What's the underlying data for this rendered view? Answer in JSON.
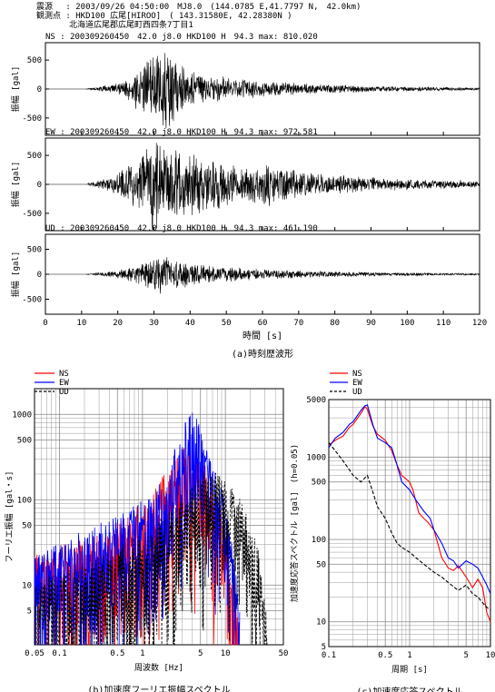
{
  "header": {
    "line1": "震源　 : 2003/09/26 04:50:00　MJ8.0　(144.0785 E,41.7797 N,　42.0km)",
    "line2": "観測点 : HKD100 広尾[HIROO]　( 143.31580E, 42.28380N )",
    "line3": "　　　　北海道広尾郡広尾町西四条7丁目1"
  },
  "chart_data": [
    {
      "type": "line",
      "id": "a",
      "caption": "(a)時刻歴波形",
      "xlabel": "時間 [s]",
      "xlim": [
        0,
        120
      ],
      "xticks": [
        0,
        10,
        20,
        30,
        40,
        50,
        60,
        70,
        80,
        90,
        100,
        110,
        120
      ],
      "panels": [
        {
          "component": "NS",
          "info": "NS : 200309260450　42.0 j8.0 HKD100 H　94.3 max: 810.020",
          "ylabel": "振幅 [gal]",
          "ylim": [
            -800,
            800
          ],
          "yticks": [
            500,
            0,
            -500
          ],
          "max_amplitude": 810.02,
          "envelope": [
            [
              0,
              0
            ],
            [
              11,
              0
            ],
            [
              14,
              40
            ],
            [
              18,
              80
            ],
            [
              22,
              160
            ],
            [
              25,
              380
            ],
            [
              27,
              480
            ],
            [
              29,
              600
            ],
            [
              31,
              720
            ],
            [
              33,
              810
            ],
            [
              35,
              700
            ],
            [
              37,
              560
            ],
            [
              39,
              430
            ],
            [
              42,
              330
            ],
            [
              46,
              260
            ],
            [
              52,
              200
            ],
            [
              60,
              150
            ],
            [
              70,
              110
            ],
            [
              80,
              80
            ],
            [
              90,
              60
            ],
            [
              100,
              45
            ],
            [
              110,
              35
            ],
            [
              120,
              25
            ]
          ]
        },
        {
          "component": "EW",
          "info": "EW : 200309260450　42.0 j8.0 HKD100 H　94.3 max: 972.581",
          "ylabel": "振幅 [gal]",
          "ylim": [
            -800,
            800
          ],
          "yticks": [
            500,
            0,
            -500
          ],
          "max_amplitude": 972.581,
          "envelope": [
            [
              0,
              0
            ],
            [
              11,
              0
            ],
            [
              14,
              60
            ],
            [
              18,
              150
            ],
            [
              22,
              300
            ],
            [
              25,
              450
            ],
            [
              28,
              700
            ],
            [
              30,
              973
            ],
            [
              32,
              800
            ],
            [
              34,
              640
            ],
            [
              36,
              700
            ],
            [
              38,
              560
            ],
            [
              42,
              600
            ],
            [
              46,
              480
            ],
            [
              52,
              380
            ],
            [
              58,
              330
            ],
            [
              62,
              420
            ],
            [
              66,
              300
            ],
            [
              72,
              240
            ],
            [
              80,
              180
            ],
            [
              90,
              130
            ],
            [
              100,
              100
            ],
            [
              110,
              80
            ],
            [
              120,
              60
            ]
          ]
        },
        {
          "component": "UD",
          "info": "UD : 200309260450　42.0 j8.0 HKD100 H　94.3 max: 461.190",
          "ylabel": "振幅 [gal]",
          "ylim": [
            -800,
            800
          ],
          "yticks": [
            500,
            0,
            -500
          ],
          "max_amplitude": 461.19,
          "envelope": [
            [
              0,
              0
            ],
            [
              11,
              0
            ],
            [
              14,
              30
            ],
            [
              18,
              60
            ],
            [
              22,
              120
            ],
            [
              26,
              230
            ],
            [
              29,
              330
            ],
            [
              32,
              461
            ],
            [
              34,
              400
            ],
            [
              37,
              330
            ],
            [
              40,
              280
            ],
            [
              45,
              200
            ],
            [
              50,
              160
            ],
            [
              60,
              110
            ],
            [
              70,
              80
            ],
            [
              80,
              60
            ],
            [
              90,
              45
            ],
            [
              100,
              35
            ],
            [
              110,
              25
            ],
            [
              120,
              20
            ]
          ]
        }
      ]
    },
    {
      "type": "line",
      "id": "b",
      "caption": "(b)加速度フーリエ振幅スペクトル",
      "xlabel": "周波数 [Hz]",
      "ylabel": "フーリエ振幅 [gal・s]",
      "xscale": "log",
      "yscale": "log",
      "xlim": [
        0.05,
        50
      ],
      "ylim": [
        2,
        2000
      ],
      "xticks": [
        {
          "v": 0.05,
          "t": "0.05"
        },
        {
          "v": 0.1,
          "t": "0.1"
        },
        {
          "v": 0.5,
          "t": "0.5"
        },
        {
          "v": 1,
          "t": "1"
        },
        {
          "v": 5,
          "t": "5"
        },
        {
          "v": 10,
          "t": "10"
        },
        {
          "v": 50,
          "t": "50"
        }
      ],
      "yticks": [
        {
          "v": 5,
          "t": "5"
        },
        {
          "v": 10,
          "t": "10"
        },
        {
          "v": 50,
          "t": "50"
        },
        {
          "v": 100,
          "t": "100"
        },
        {
          "v": 500,
          "t": "500"
        },
        {
          "v": 1000,
          "t": "1000"
        }
      ],
      "legend": [
        "NS",
        "EW",
        "UD"
      ],
      "legend_position": "top-left",
      "grid": true,
      "series": [
        {
          "name": "NS",
          "color": "#ff0000",
          "style": "solid",
          "envelope": [
            [
              0.05,
              25
            ],
            [
              0.1,
              30
            ],
            [
              0.2,
              35
            ],
            [
              0.3,
              45
            ],
            [
              0.5,
              60
            ],
            [
              0.7,
              70
            ],
            [
              1,
              100
            ],
            [
              1.5,
              150
            ],
            [
              2,
              260
            ],
            [
              3,
              400
            ],
            [
              3.8,
              500
            ],
            [
              4.5,
              400
            ],
            [
              6,
              250
            ],
            [
              8,
              120
            ],
            [
              10,
              60
            ],
            [
              12,
              20
            ],
            [
              14,
              5
            ]
          ]
        },
        {
          "name": "EW",
          "color": "#0000ff",
          "style": "solid",
          "envelope": [
            [
              0.05,
              25
            ],
            [
              0.1,
              35
            ],
            [
              0.2,
              45
            ],
            [
              0.3,
              55
            ],
            [
              0.5,
              65
            ],
            [
              0.7,
              80
            ],
            [
              1,
              100
            ],
            [
              1.5,
              150
            ],
            [
              2,
              280
            ],
            [
              3,
              650
            ],
            [
              3.8,
              1200
            ],
            [
              4.2,
              1100
            ],
            [
              5,
              700
            ],
            [
              7,
              350
            ],
            [
              9,
              150
            ],
            [
              11,
              60
            ],
            [
              13,
              20
            ],
            [
              15,
              5
            ]
          ]
        },
        {
          "name": "UD",
          "color": "#000000",
          "style": "dashed",
          "envelope": [
            [
              0.05,
              12
            ],
            [
              0.1,
              15
            ],
            [
              0.2,
              18
            ],
            [
              0.3,
              22
            ],
            [
              0.5,
              30
            ],
            [
              0.7,
              35
            ],
            [
              1,
              40
            ],
            [
              1.5,
              60
            ],
            [
              2,
              80
            ],
            [
              3,
              120
            ],
            [
              4,
              150
            ],
            [
              6,
              230
            ],
            [
              8,
              240
            ],
            [
              10,
              220
            ],
            [
              14,
              120
            ],
            [
              20,
              60
            ],
            [
              25,
              30
            ],
            [
              30,
              8
            ],
            [
              33,
              2
            ]
          ]
        }
      ]
    },
    {
      "type": "line",
      "id": "c",
      "caption": "(c)加速度応答スペクトル",
      "xlabel": "周期 [s]",
      "ylabel": "加速度応答スペクトル [gal]　(h=0.05)",
      "xscale": "log",
      "yscale": "log",
      "xlim": [
        0.1,
        10
      ],
      "ylim": [
        5,
        5000
      ],
      "xticks": [
        {
          "v": 0.1,
          "t": "0.1"
        },
        {
          "v": 0.5,
          "t": "0.5"
        },
        {
          "v": 1,
          "t": "1"
        },
        {
          "v": 5,
          "t": "5"
        },
        {
          "v": 10,
          "t": "10"
        }
      ],
      "yticks": [
        {
          "v": 5,
          "t": "5"
        },
        {
          "v": 10,
          "t": "10"
        },
        {
          "v": 50,
          "t": "50"
        },
        {
          "v": 100,
          "t": "100"
        },
        {
          "v": 500,
          "t": "500"
        },
        {
          "v": 1000,
          "t": "1000"
        },
        {
          "v": 5000,
          "t": "5000"
        }
      ],
      "legend": [
        "NS",
        "EW",
        "UD"
      ],
      "legend_position": "top-right",
      "grid": true,
      "series": [
        {
          "name": "NS",
          "color": "#ff0000",
          "style": "solid",
          "points": [
            [
              0.1,
              1400
            ],
            [
              0.12,
              1600
            ],
            [
              0.15,
              1800
            ],
            [
              0.18,
              2300
            ],
            [
              0.2,
              2500
            ],
            [
              0.25,
              3400
            ],
            [
              0.28,
              4100
            ],
            [
              0.3,
              3800
            ],
            [
              0.35,
              2400
            ],
            [
              0.4,
              1900
            ],
            [
              0.5,
              1600
            ],
            [
              0.6,
              1200
            ],
            [
              0.7,
              800
            ],
            [
              0.8,
              600
            ],
            [
              1,
              500
            ],
            [
              1.1,
              400
            ],
            [
              1.3,
              210
            ],
            [
              1.5,
              180
            ],
            [
              1.7,
              160
            ],
            [
              2,
              130
            ],
            [
              2.5,
              60
            ],
            [
              3,
              45
            ],
            [
              3.5,
              42
            ],
            [
              4,
              48
            ],
            [
              5,
              35
            ],
            [
              6,
              26
            ],
            [
              7,
              33
            ],
            [
              8,
              26
            ],
            [
              9,
              13
            ],
            [
              10,
              10
            ]
          ]
        },
        {
          "name": "EW",
          "color": "#0000ff",
          "style": "solid",
          "points": [
            [
              0.1,
              1300
            ],
            [
              0.12,
              1700
            ],
            [
              0.15,
              2000
            ],
            [
              0.18,
              2500
            ],
            [
              0.2,
              2700
            ],
            [
              0.25,
              3700
            ],
            [
              0.28,
              4200
            ],
            [
              0.3,
              4300
            ],
            [
              0.35,
              2500
            ],
            [
              0.4,
              1700
            ],
            [
              0.5,
              1500
            ],
            [
              0.6,
              1300
            ],
            [
              0.7,
              800
            ],
            [
              0.8,
              500
            ],
            [
              1,
              400
            ],
            [
              1.2,
              300
            ],
            [
              1.5,
              220
            ],
            [
              1.8,
              180
            ],
            [
              2,
              130
            ],
            [
              2.5,
              90
            ],
            [
              3,
              60
            ],
            [
              3.5,
              55
            ],
            [
              4,
              45
            ],
            [
              5,
              55
            ],
            [
              6,
              50
            ],
            [
              7,
              45
            ],
            [
              8,
              35
            ],
            [
              9,
              28
            ],
            [
              10,
              22
            ]
          ]
        },
        {
          "name": "UD",
          "color": "#000000",
          "style": "dashed",
          "points": [
            [
              0.1,
              1500
            ],
            [
              0.12,
              1200
            ],
            [
              0.15,
              900
            ],
            [
              0.18,
              700
            ],
            [
              0.2,
              600
            ],
            [
              0.25,
              500
            ],
            [
              0.3,
              600
            ],
            [
              0.35,
              380
            ],
            [
              0.4,
              250
            ],
            [
              0.5,
              180
            ],
            [
              0.6,
              120
            ],
            [
              0.7,
              90
            ],
            [
              0.8,
              80
            ],
            [
              1,
              70
            ],
            [
              1.2,
              60
            ],
            [
              1.5,
              50
            ],
            [
              2,
              40
            ],
            [
              2.5,
              35
            ],
            [
              3,
              30
            ],
            [
              4,
              24
            ],
            [
              5,
              28
            ],
            [
              6,
              22
            ],
            [
              7,
              20
            ],
            [
              8,
              17
            ],
            [
              9,
              15
            ],
            [
              10,
              14
            ]
          ]
        }
      ]
    }
  ]
}
